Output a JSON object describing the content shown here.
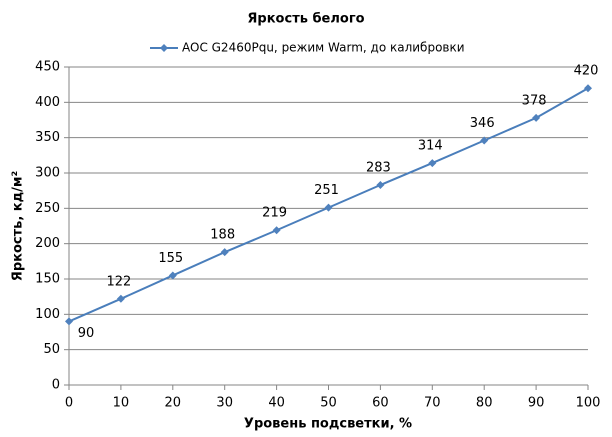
{
  "chart_data": {
    "type": "line",
    "title": "Яркость белого",
    "x_label": "Уровень подсветки, %",
    "y_label": "Яркость, кд/м²",
    "x": [
      0,
      10,
      20,
      30,
      40,
      50,
      60,
      70,
      80,
      90,
      100
    ],
    "series": [
      {
        "name": "AOC G2460Pqu, режим Warm, до калибровки",
        "color": "#4a7ebb",
        "values": [
          90,
          122,
          155,
          188,
          219,
          251,
          283,
          314,
          346,
          378,
          420
        ]
      }
    ],
    "xlim": [
      0,
      100
    ],
    "xticks": [
      0,
      10,
      20,
      30,
      40,
      50,
      60,
      70,
      80,
      90,
      100
    ],
    "ylim": [
      0,
      450
    ],
    "yticks": [
      0,
      50,
      100,
      150,
      200,
      250,
      300,
      350,
      400,
      450
    ],
    "grid": true,
    "legend": "top"
  }
}
